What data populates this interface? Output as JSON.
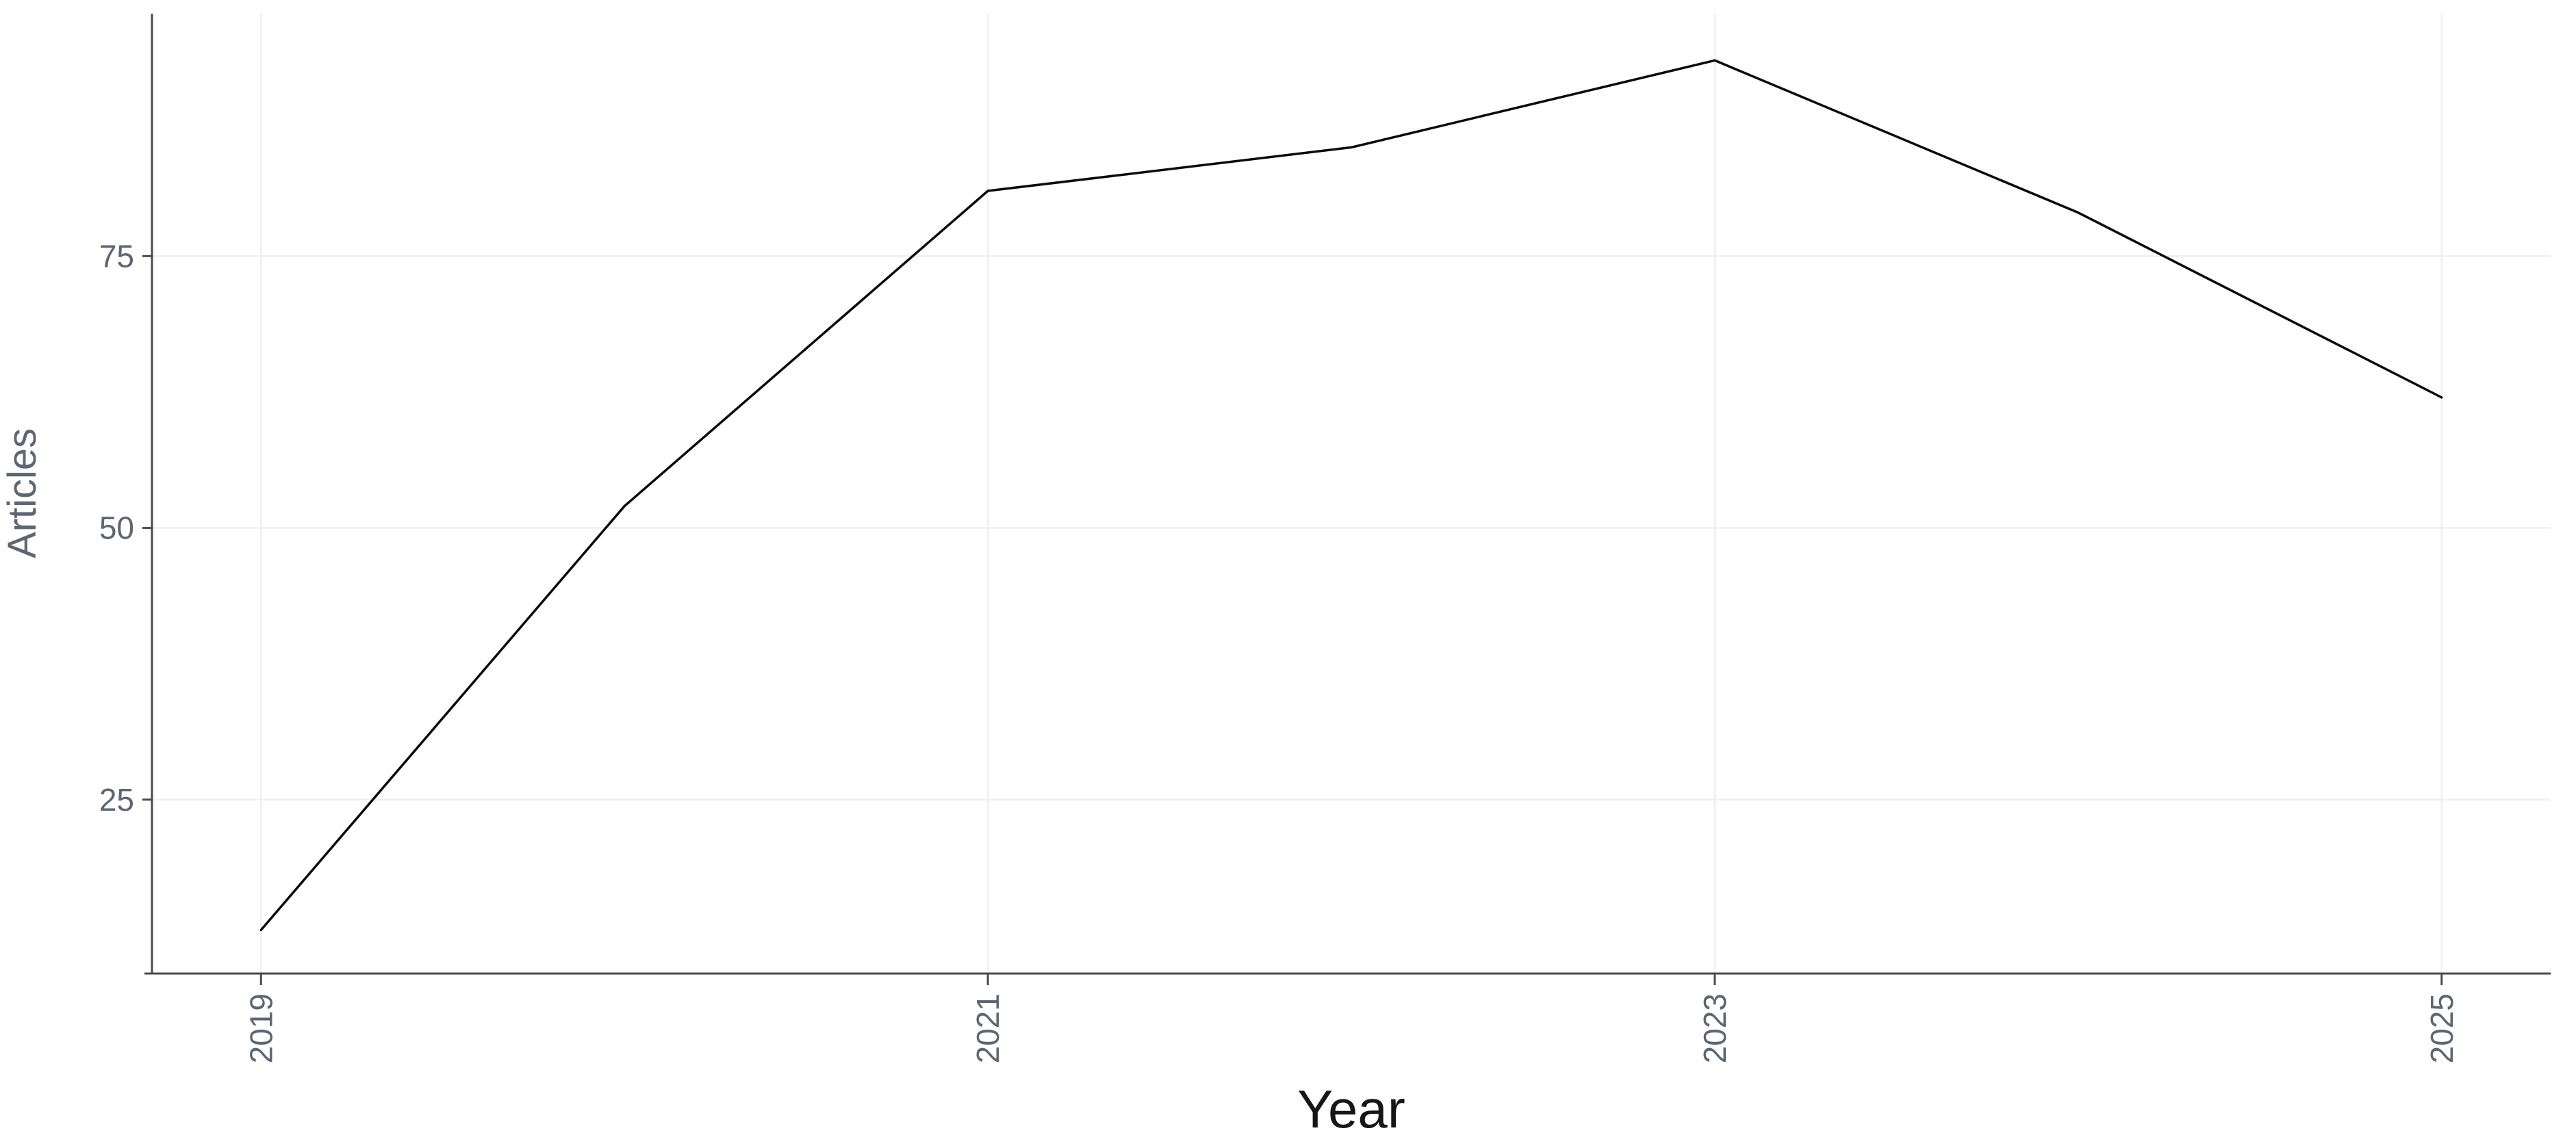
{
  "figure": {
    "background_color": "#ffffff"
  },
  "chart_data": {
    "type": "line",
    "title": "",
    "xlabel": "Year",
    "ylabel": "Articles",
    "x": [
      2019,
      2020,
      2021,
      2022,
      2023,
      2024,
      2025
    ],
    "values": [
      13,
      52,
      81,
      85,
      93,
      79,
      62
    ],
    "x_ticks": [
      2019,
      2021,
      2023,
      2025
    ],
    "y_ticks": [
      25,
      50,
      75
    ],
    "xlim": [
      2018.7,
      2025.3
    ],
    "ylim": [
      9,
      97.3
    ],
    "x_tick_label_rotation_deg": -90,
    "grid": "major-only",
    "legend": "none",
    "line_color": "#0b0b0b",
    "line_width": 3.5,
    "axis_color": "#4b4b4b",
    "grid_color": "#efeff1",
    "tick_label_color": "#5d6671",
    "x_title_color": "#161616",
    "y_title_color": "#5d6671"
  }
}
